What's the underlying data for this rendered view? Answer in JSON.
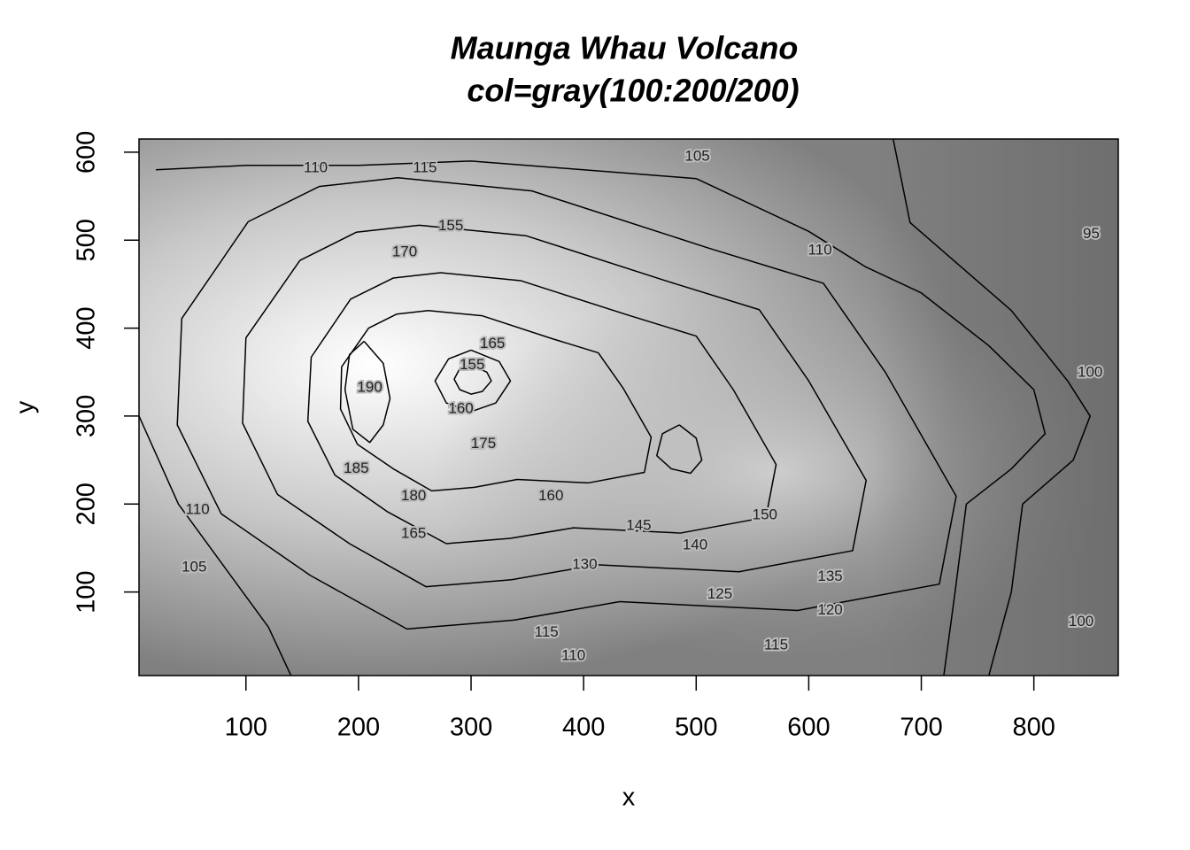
{
  "chart_data": {
    "type": "contour",
    "title": "Maunga Whau Volcano",
    "subtitle": "col=gray(100:200/200)",
    "x_label": "x",
    "y_label": "y",
    "xlim": [
      5,
      875
    ],
    "ylim": [
      5,
      615
    ],
    "xticks": [
      100,
      200,
      300,
      400,
      500,
      600,
      700,
      800
    ],
    "yticks": [
      100,
      200,
      300,
      400,
      500,
      600
    ],
    "line_color": "#000000",
    "contours": [
      {
        "x": [
          20,
          100,
          200,
          300,
          400,
          500,
          600,
          650,
          700,
          760,
          800,
          810,
          780,
          740,
          730,
          720
        ],
        "y": [
          580,
          585,
          585,
          590,
          580,
          570,
          510,
          470,
          440,
          380,
          330,
          280,
          240,
          200,
          100,
          5
        ]
      },
      {
        "x": [
          675,
          690,
          780,
          830,
          850,
          835,
          790,
          780,
          760
        ],
        "y": [
          615,
          520,
          420,
          340,
          300,
          250,
          200,
          100,
          5
        ]
      },
      {
        "x": [
          5,
          40,
          80,
          120,
          140
        ],
        "y": [
          300,
          200,
          130,
          60,
          5
        ]
      },
      {
        "x": [
          235,
          354,
          511,
          613,
          668,
          731,
          716,
          590,
          432,
          338,
          243,
          157,
          78,
          39,
          43,
          102,
          165,
          235
        ],
        "y": [
          571,
          556,
          491,
          451,
          350,
          209,
          109,
          79,
          89,
          68,
          58,
          119,
          189,
          290,
          411,
          521,
          561,
          571
        ]
      },
      {
        "x": [
          254,
          349,
          475,
          556,
          600,
          651,
          639,
          538,
          412,
          336,
          260,
          192,
          128,
          97,
          100,
          148,
          198,
          254
        ],
        "y": [
          517,
          505,
          453,
          421,
          340,
          227,
          147,
          123,
          131,
          114,
          106,
          155,
          211,
          292,
          389,
          477,
          509,
          517
        ]
      },
      {
        "x": [
          273,
          344,
          439,
          500,
          533,
          571,
          562,
          486,
          391,
          335,
          278,
          226,
          179,
          155,
          158,
          193,
          231,
          273
        ],
        "y": [
          463,
          454,
          415,
          391,
          330,
          245,
          185,
          167,
          173,
          161,
          155,
          191,
          233,
          294,
          367,
          433,
          457,
          463
        ]
      },
      {
        "x": [
          262,
          310,
          372,
          413,
          435,
          460,
          454,
          404,
          341,
          303,
          265,
          231,
          199,
          184,
          185,
          209,
          234,
          262
        ],
        "y": [
          420,
          414,
          388,
          372,
          332,
          276,
          236,
          224,
          228,
          219,
          215,
          240,
          268,
          308,
          356,
          400,
          416,
          420
        ]
      },
      {
        "x": [
          205,
          222,
          228,
          222,
          210,
          195,
          188,
          192,
          205
        ],
        "y": [
          385,
          360,
          320,
          290,
          270,
          285,
          330,
          370,
          385
        ]
      },
      {
        "x": [
          300,
          325,
          335,
          322,
          300,
          278,
          268,
          280,
          300
        ],
        "y": [
          375,
          362,
          340,
          315,
          305,
          315,
          340,
          365,
          375
        ]
      },
      {
        "x": [
          300,
          314,
          318,
          310,
          300,
          290,
          285,
          290,
          300
        ],
        "y": [
          358,
          350,
          340,
          328,
          325,
          330,
          342,
          354,
          358
        ]
      },
      {
        "x": [
          485,
          500,
          505,
          495,
          478,
          465,
          470,
          485
        ],
        "y": [
          290,
          275,
          250,
          235,
          240,
          255,
          280,
          290
        ]
      }
    ],
    "contour_labels": [
      {
        "level": 110,
        "x": 162,
        "y": 582
      },
      {
        "level": 115,
        "x": 259,
        "y": 582
      },
      {
        "level": 105,
        "x": 501,
        "y": 595
      },
      {
        "level": 95,
        "x": 851,
        "y": 507
      },
      {
        "level": 110,
        "x": 610,
        "y": 488
      },
      {
        "level": 155,
        "x": 282,
        "y": 516
      },
      {
        "level": 170,
        "x": 241,
        "y": 486
      },
      {
        "level": 165,
        "x": 319,
        "y": 382
      },
      {
        "level": 155,
        "x": 301,
        "y": 358
      },
      {
        "level": 190,
        "x": 210,
        "y": 332
      },
      {
        "level": 160,
        "x": 291,
        "y": 308
      },
      {
        "level": 175,
        "x": 311,
        "y": 268
      },
      {
        "level": 185,
        "x": 198,
        "y": 240
      },
      {
        "level": 180,
        "x": 249,
        "y": 209
      },
      {
        "level": 160,
        "x": 371,
        "y": 209
      },
      {
        "level": 165,
        "x": 249,
        "y": 166
      },
      {
        "level": 150,
        "x": 561,
        "y": 187
      },
      {
        "level": 145,
        "x": 449,
        "y": 175
      },
      {
        "level": 140,
        "x": 499,
        "y": 153
      },
      {
        "level": 130,
        "x": 401,
        "y": 131
      },
      {
        "level": 135,
        "x": 619,
        "y": 117
      },
      {
        "level": 125,
        "x": 521,
        "y": 97
      },
      {
        "level": 120,
        "x": 619,
        "y": 79
      },
      {
        "level": 115,
        "x": 367,
        "y": 54
      },
      {
        "level": 115,
        "x": 571,
        "y": 39
      },
      {
        "level": 110,
        "x": 391,
        "y": 27
      },
      {
        "level": 110,
        "x": 57,
        "y": 193
      },
      {
        "level": 105,
        "x": 54,
        "y": 128
      },
      {
        "level": 100,
        "x": 850,
        "y": 349
      },
      {
        "level": 100,
        "x": 842,
        "y": 66
      }
    ]
  }
}
